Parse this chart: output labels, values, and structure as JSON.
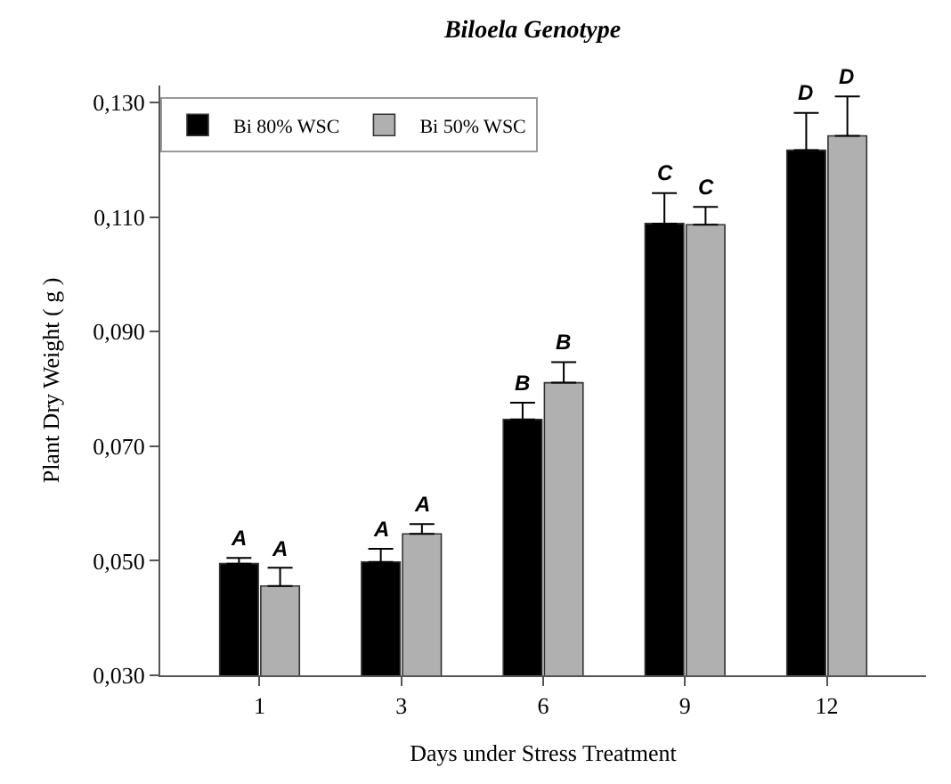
{
  "chart_data": {
    "type": "bar",
    "title": "Biloela Genotype",
    "xlabel": "Days under Stress Treatment",
    "ylabel": "Plant Dry Weight ( g )",
    "categories": [
      "1",
      "3",
      "6",
      "9",
      "12"
    ],
    "series": [
      {
        "name": "Bi 80% WSC",
        "color": "#000000",
        "values": [
          0.0495,
          0.0498,
          0.0747,
          0.1089,
          0.1217
        ],
        "errors": [
          [
            0.0495,
            0.0505
          ],
          [
            0.0498,
            0.0521
          ],
          [
            0.0747,
            0.0776
          ],
          [
            0.1089,
            0.1142
          ],
          [
            0.1217,
            0.1282
          ]
        ]
      },
      {
        "name": "Bi 50% WSC",
        "color": "#b0b0b0",
        "values": [
          0.0456,
          0.0547,
          0.0811,
          0.1087,
          0.1242
        ],
        "errors": [
          [
            0.0456,
            0.0488
          ],
          [
            0.0547,
            0.0564
          ],
          [
            0.0811,
            0.0847
          ],
          [
            0.1087,
            0.1118
          ],
          [
            0.1242,
            0.1311
          ]
        ]
      }
    ],
    "ylim": [
      0.03,
      0.133
    ],
    "yticks": [
      {
        "value": 0.03,
        "label": "0,030"
      },
      {
        "value": 0.05,
        "label": "0,050"
      },
      {
        "value": 0.07,
        "label": "0,070"
      },
      {
        "value": 0.09,
        "label": "0,090"
      },
      {
        "value": 0.11,
        "label": "0,110"
      },
      {
        "value": 0.13,
        "label": "0,130"
      }
    ],
    "annotations": [
      {
        "text": "A",
        "x": "1",
        "y": 0.0495
      },
      {
        "text": "A",
        "x": "1",
        "y": 0.0456
      },
      {
        "text": "A",
        "x": "3",
        "y": 0.0498
      },
      {
        "text": "A",
        "x": "3",
        "y": 0.0547
      },
      {
        "text": "B",
        "x": "6",
        "y": 0.0747
      },
      {
        "text": "B",
        "x": "6",
        "y": 0.0811
      },
      {
        "text": "C",
        "x": "9",
        "y": 0.1089
      },
      {
        "text": "C",
        "x": "9",
        "y": 0.1087
      },
      {
        "text": "D",
        "x": "12",
        "y": 0.1217
      },
      {
        "text": "D",
        "x": "12",
        "y": 0.1242
      }
    ],
    "legend": "top left"
  }
}
